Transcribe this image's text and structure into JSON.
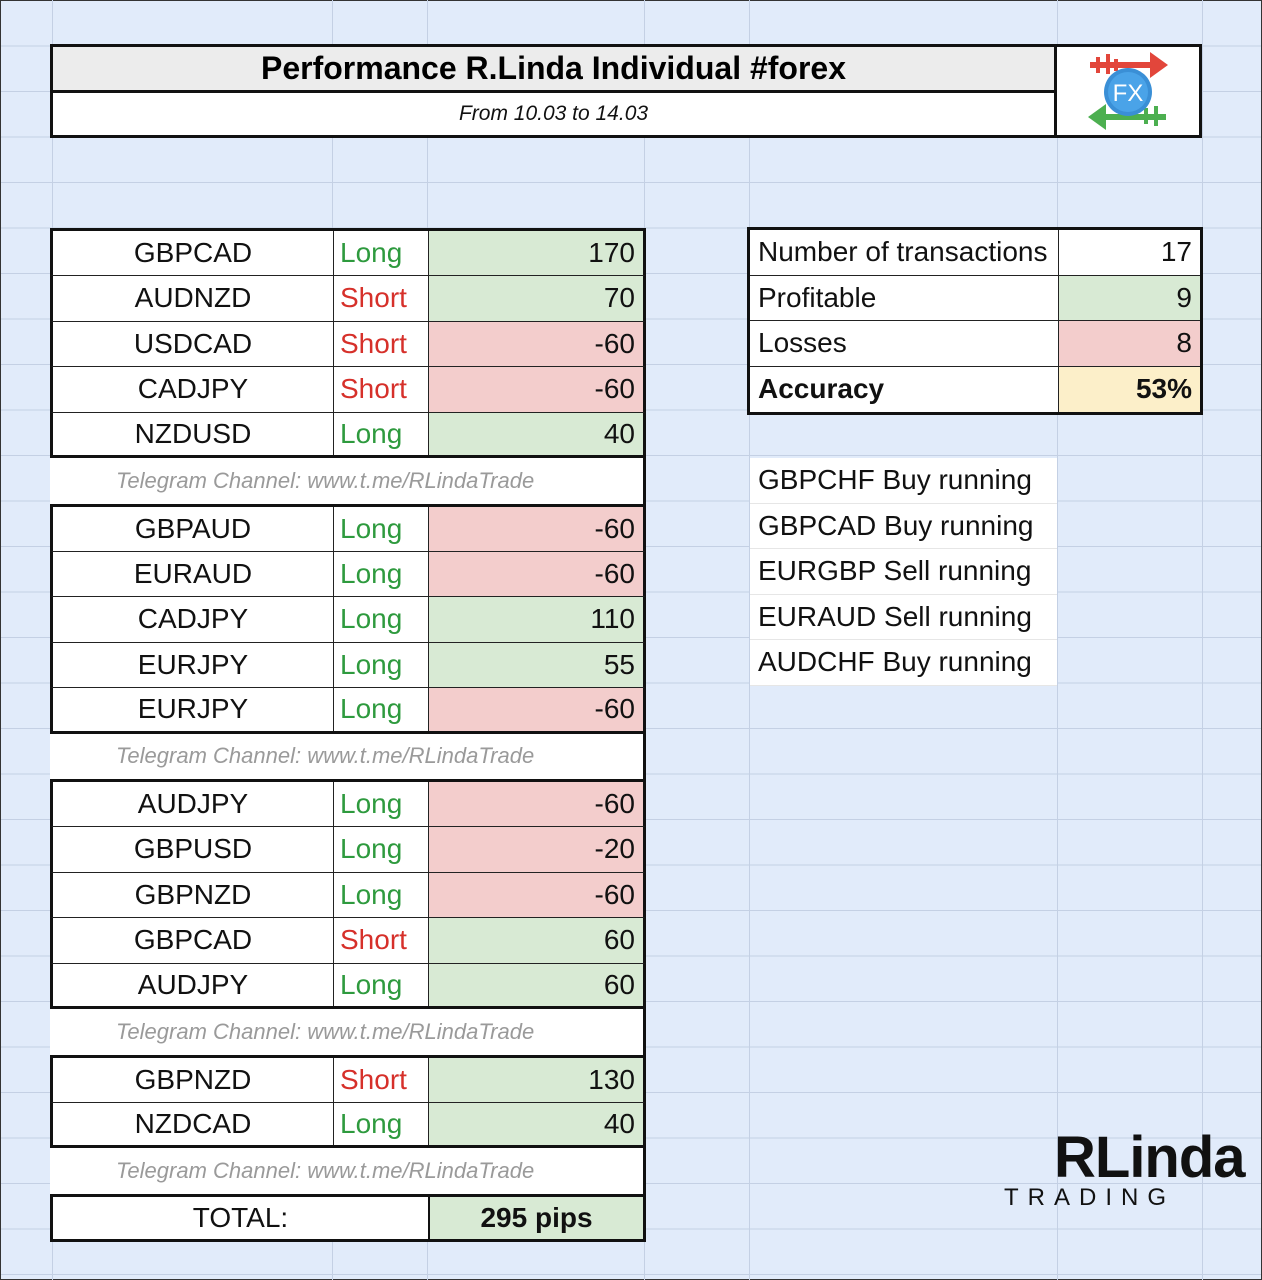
{
  "header": {
    "title": "Performance R.Linda Individual #forex",
    "subtitle": "From 10.03 to 14.03",
    "logo_text": "FX"
  },
  "trade_groups": [
    {
      "trades": [
        {
          "pair": "GBPCAD",
          "direction": "Long",
          "pips": "170",
          "result": "profit"
        },
        {
          "pair": "AUDNZD",
          "direction": "Short",
          "pips": "70",
          "result": "profit"
        },
        {
          "pair": "USDCAD",
          "direction": "Short",
          "pips": "-60",
          "result": "loss"
        },
        {
          "pair": "CADJPY",
          "direction": "Short",
          "pips": "-60",
          "result": "loss"
        },
        {
          "pair": "NZDUSD",
          "direction": "Long",
          "pips": "40",
          "result": "profit"
        }
      ],
      "promo": "Telegram Channel:  www.t.me/RLindaTrade"
    },
    {
      "trades": [
        {
          "pair": "GBPAUD",
          "direction": "Long",
          "pips": "-60",
          "result": "loss"
        },
        {
          "pair": "EURAUD",
          "direction": "Long",
          "pips": "-60",
          "result": "loss"
        },
        {
          "pair": "CADJPY",
          "direction": "Long",
          "pips": "110",
          "result": "profit"
        },
        {
          "pair": "EURJPY",
          "direction": "Long",
          "pips": "55",
          "result": "profit"
        },
        {
          "pair": "EURJPY",
          "direction": "Long",
          "pips": "-60",
          "result": "loss"
        }
      ],
      "promo": "Telegram Channel:  www.t.me/RLindaTrade"
    },
    {
      "trades": [
        {
          "pair": "AUDJPY",
          "direction": "Long",
          "pips": "-60",
          "result": "loss"
        },
        {
          "pair": "GBPUSD",
          "direction": "Long",
          "pips": "-20",
          "result": "loss"
        },
        {
          "pair": "GBPNZD",
          "direction": "Long",
          "pips": "-60",
          "result": "loss"
        },
        {
          "pair": "GBPCAD",
          "direction": "Short",
          "pips": "60",
          "result": "profit"
        },
        {
          "pair": "AUDJPY",
          "direction": "Long",
          "pips": "60",
          "result": "profit"
        }
      ],
      "promo": "Telegram Channel:  www.t.me/RLindaTrade"
    },
    {
      "trades": [
        {
          "pair": "GBPNZD",
          "direction": "Short",
          "pips": "130",
          "result": "profit"
        },
        {
          "pair": "NZDCAD",
          "direction": "Long",
          "pips": "40",
          "result": "profit"
        }
      ],
      "promo": "Telegram Channel:  www.t.me/RLindaTrade"
    }
  ],
  "total": {
    "label": "TOTAL:",
    "value": "295 pips"
  },
  "stats": {
    "transactions_label": "Number of transactions",
    "transactions_value": "17",
    "profitable_label": "Profitable",
    "profitable_value": "9",
    "losses_label": "Losses",
    "losses_value": "8",
    "accuracy_label": "Accuracy",
    "accuracy_value": "53%"
  },
  "running": [
    "GBPCHF Buy running",
    "GBPCAD Buy running",
    "EURGBP Sell running",
    "EURAUD Sell running",
    "AUDCHF Buy running"
  ],
  "brand": {
    "name": "RLinda",
    "tagline": "TRADING"
  },
  "colors": {
    "background": "#e1ebfa",
    "profit_fill": "#d8ead4",
    "loss_fill": "#f3cdcc",
    "accuracy_fill": "#fcefc9",
    "long_text": "#2e9a3e",
    "short_text": "#d6302a",
    "promo_text": "#9a9a9a"
  }
}
